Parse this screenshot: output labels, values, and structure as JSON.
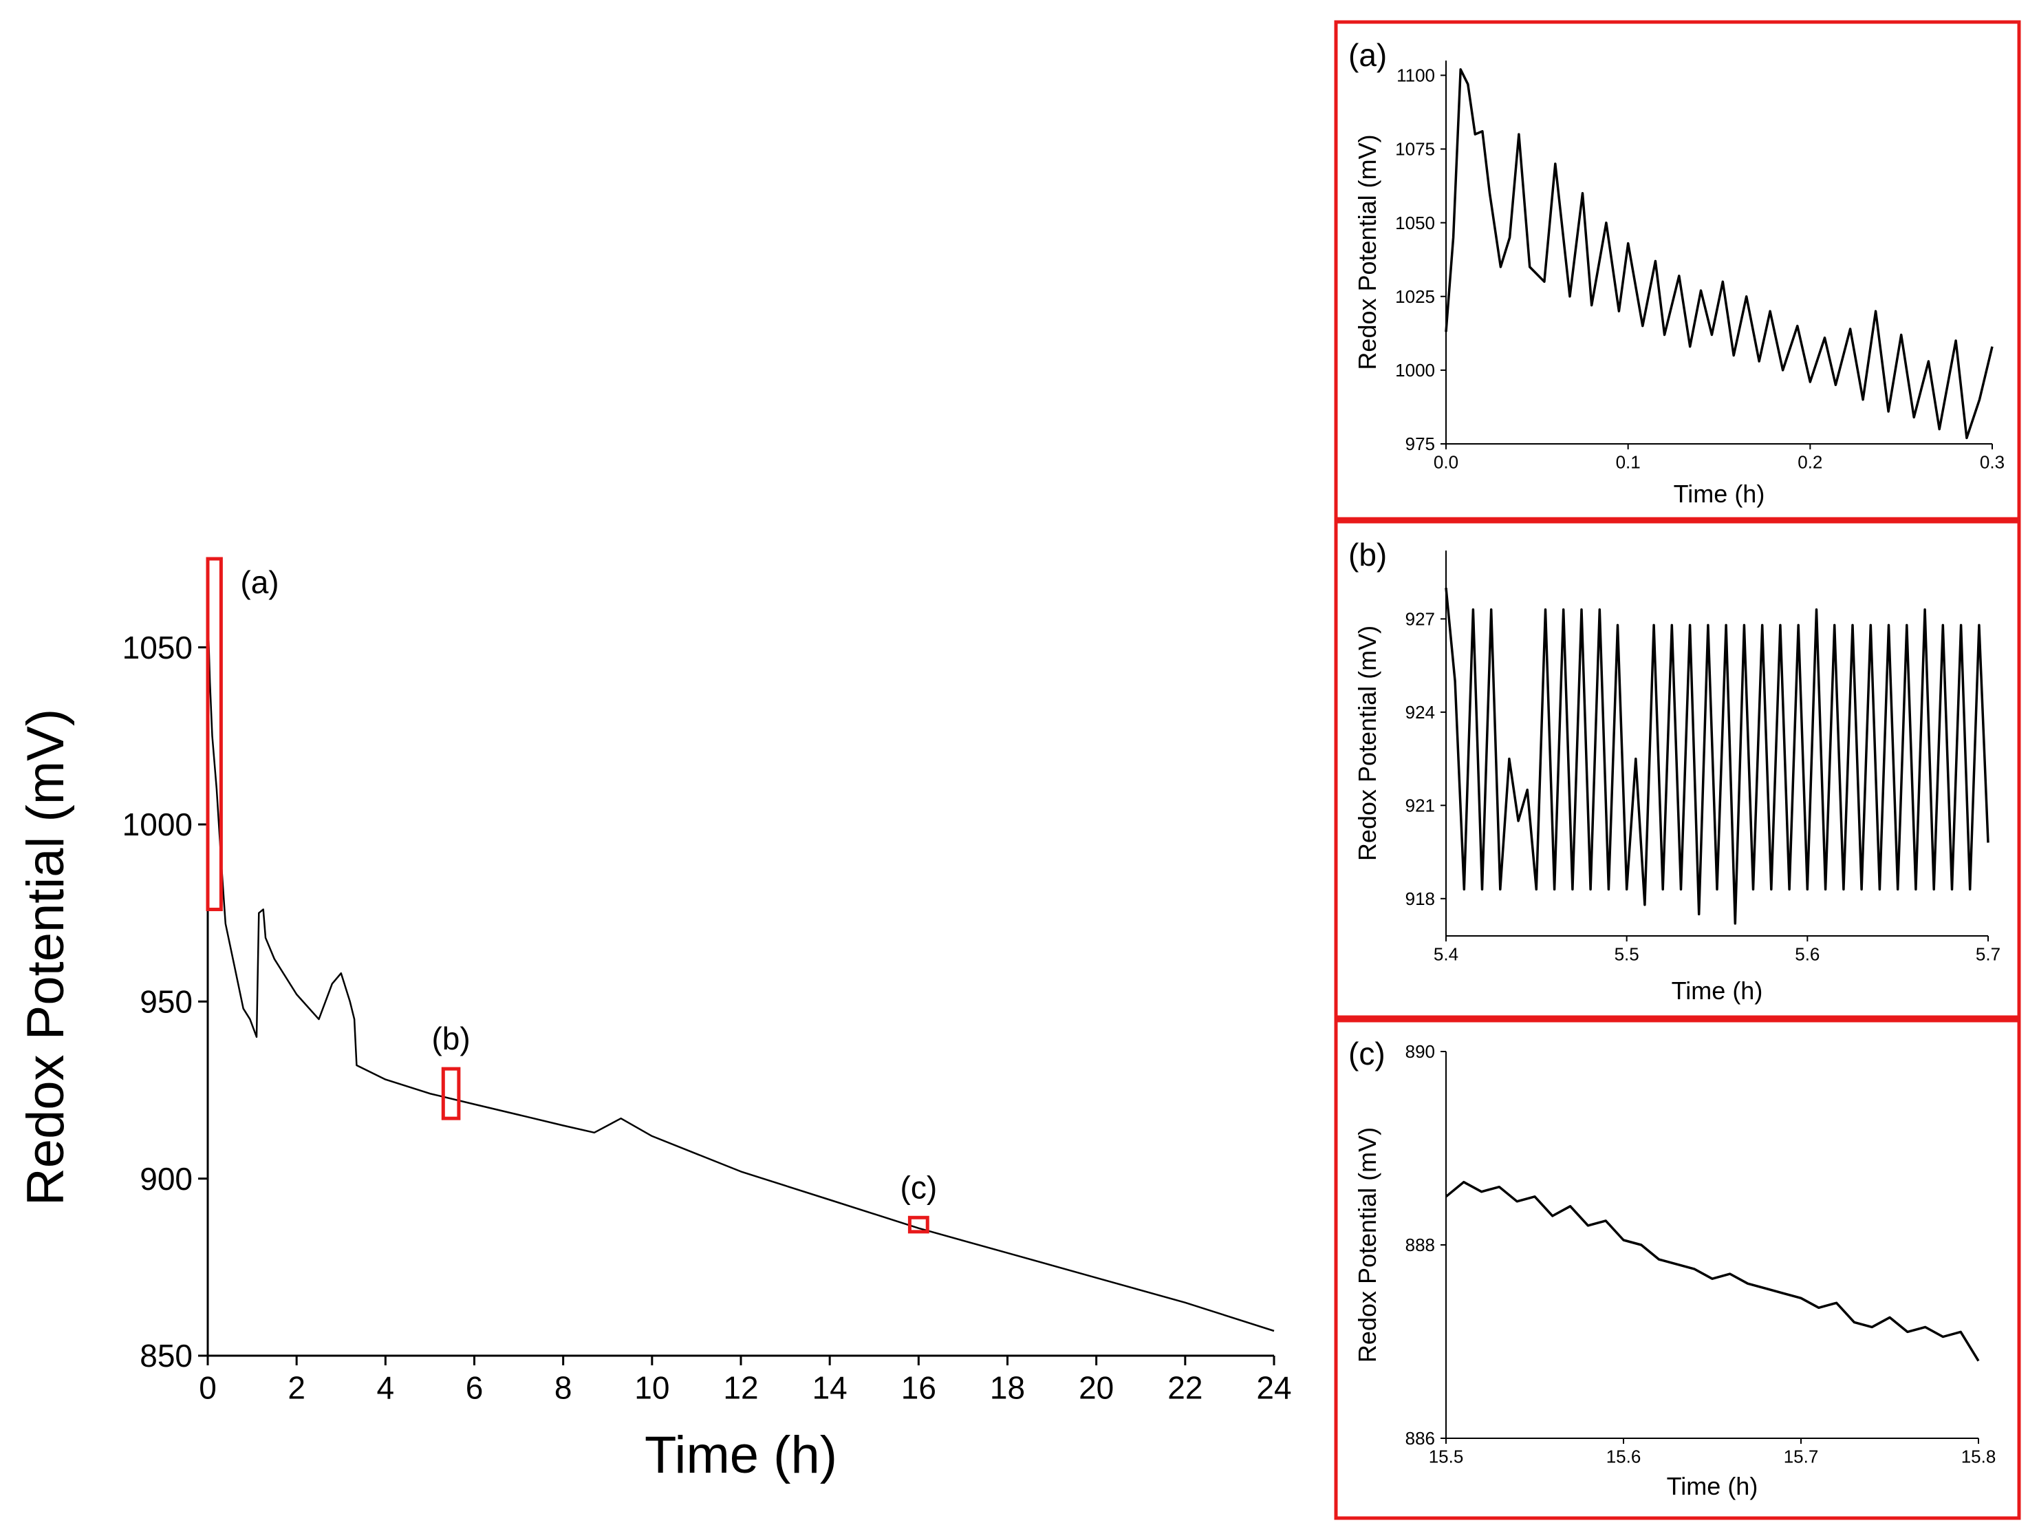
{
  "chart_data": [
    {
      "id": "main",
      "type": "line",
      "title": "",
      "xlabel": "Time (h)",
      "ylabel": "Redox Potential (mV)",
      "xlim": [
        0,
        24
      ],
      "ylim": [
        850,
        1075
      ],
      "xticks": [
        0,
        2,
        4,
        6,
        8,
        10,
        12,
        14,
        16,
        18,
        20,
        22,
        24
      ],
      "yticks": [
        850,
        900,
        950,
        1000,
        1050
      ],
      "series": [
        {
          "name": "Redox potential",
          "x": [
            0,
            0.05,
            0.1,
            0.2,
            0.3,
            0.4,
            0.6,
            0.8,
            0.95,
            1.1,
            1.15,
            1.25,
            1.3,
            1.5,
            2.0,
            2.5,
            2.8,
            3.0,
            3.2,
            3.3,
            3.35,
            4,
            5,
            6,
            7,
            8,
            8.7,
            9.3,
            10,
            12,
            14,
            16,
            18,
            20,
            22,
            24
          ],
          "y": [
            1060,
            1040,
            1025,
            1010,
            990,
            972,
            960,
            948,
            945,
            940,
            975,
            976,
            968,
            962,
            952,
            945,
            955,
            958,
            950,
            945,
            932,
            928,
            924,
            921,
            918,
            915,
            913,
            917,
            912,
            902,
            894,
            886,
            879,
            872,
            865,
            857
          ]
        }
      ],
      "markers": [
        {
          "label": "(a)",
          "x": [
            0,
            0.3
          ],
          "y": [
            976,
            1075
          ]
        },
        {
          "label": "(b)",
          "x": [
            5.3,
            5.65
          ],
          "y": [
            917,
            931
          ]
        },
        {
          "label": "(c)",
          "x": [
            15.8,
            16.2
          ],
          "y": [
            885,
            889
          ]
        }
      ]
    },
    {
      "id": "a",
      "type": "line",
      "panel_label": "(a)",
      "xlabel": "Time (h)",
      "ylabel": "Redox Potential (mV)",
      "xlim": [
        0,
        0.3
      ],
      "ylim": [
        975,
        1105
      ],
      "xticks": [
        0.0,
        0.1,
        0.2,
        0.3
      ],
      "xtick_labels": [
        "0.0",
        "0.1",
        "0.2",
        "0.3"
      ],
      "yticks": [
        975,
        1000,
        1025,
        1050,
        1075,
        1100
      ],
      "series": [
        {
          "name": "(a)",
          "x": [
            0,
            0.004,
            0.008,
            0.012,
            0.016,
            0.02,
            0.024,
            0.03,
            0.035,
            0.04,
            0.046,
            0.054,
            0.06,
            0.068,
            0.075,
            0.08,
            0.088,
            0.095,
            0.1,
            0.108,
            0.115,
            0.12,
            0.128,
            0.134,
            0.14,
            0.146,
            0.152,
            0.158,
            0.165,
            0.172,
            0.178,
            0.185,
            0.193,
            0.2,
            0.208,
            0.214,
            0.222,
            0.229,
            0.236,
            0.243,
            0.25,
            0.257,
            0.265,
            0.271,
            0.28,
            0.286,
            0.293,
            0.3
          ],
          "y": [
            1013,
            1045,
            1102,
            1097,
            1080,
            1081,
            1060,
            1035,
            1045,
            1080,
            1035,
            1030,
            1070,
            1025,
            1060,
            1022,
            1050,
            1020,
            1043,
            1015,
            1037,
            1012,
            1032,
            1008,
            1027,
            1012,
            1030,
            1005,
            1025,
            1003,
            1020,
            1000,
            1015,
            996,
            1011,
            995,
            1014,
            990,
            1020,
            986,
            1012,
            984,
            1003,
            980,
            1010,
            977,
            990,
            1008
          ]
        }
      ]
    },
    {
      "id": "b",
      "type": "line",
      "panel_label": "(b)",
      "xlabel": "Time (h)",
      "ylabel": "Redox Potential (mV)",
      "xlim": [
        5.4,
        5.7
      ],
      "ylim": [
        916.8,
        929.2
      ],
      "xticks": [
        5.4,
        5.5,
        5.6,
        5.7
      ],
      "xtick_labels": [
        "5.4",
        "5.5",
        "5.6",
        "5.7"
      ],
      "yticks": [
        918,
        921,
        924,
        927
      ],
      "series": [
        {
          "name": "(b)",
          "x": [
            5.4,
            5.405,
            5.41,
            5.415,
            5.42,
            5.425,
            5.43,
            5.435,
            5.44,
            5.445,
            5.45,
            5.455,
            5.46,
            5.465,
            5.47,
            5.475,
            5.48,
            5.485,
            5.49,
            5.495,
            5.5,
            5.505,
            5.51,
            5.515,
            5.52,
            5.525,
            5.53,
            5.535,
            5.54,
            5.545,
            5.55,
            5.555,
            5.56,
            5.565,
            5.57,
            5.575,
            5.58,
            5.585,
            5.59,
            5.595,
            5.6,
            5.605,
            5.61,
            5.615,
            5.62,
            5.625,
            5.63,
            5.635,
            5.64,
            5.645,
            5.65,
            5.655,
            5.66,
            5.665,
            5.67,
            5.675,
            5.68,
            5.685,
            5.69,
            5.695,
            5.7
          ],
          "y": [
            928,
            925,
            918.3,
            927.3,
            918.3,
            927.3,
            918.3,
            922.5,
            920.5,
            921.5,
            918.3,
            927.3,
            918.3,
            927.3,
            918.3,
            927.3,
            918.3,
            927.3,
            918.3,
            926.8,
            918.3,
            922.5,
            917.8,
            926.8,
            918.3,
            926.8,
            918.3,
            926.8,
            917.5,
            926.8,
            918.3,
            926.8,
            917.2,
            926.8,
            918.3,
            926.8,
            918.3,
            926.8,
            918.3,
            926.8,
            918.3,
            927.3,
            918.3,
            926.8,
            918.3,
            926.8,
            918.3,
            926.8,
            918.3,
            926.8,
            918.3,
            926.8,
            918.3,
            927.3,
            918.3,
            926.8,
            918.3,
            926.8,
            918.3,
            926.8,
            919.8
          ]
        }
      ]
    },
    {
      "id": "c",
      "type": "line",
      "panel_label": "(c)",
      "xlabel": "Time (h)",
      "ylabel": "Redox Potential (mV)",
      "xlim": [
        15.5,
        15.8
      ],
      "ylim": [
        886,
        890
      ],
      "xticks": [
        15.5,
        15.6,
        15.7,
        15.8
      ],
      "xtick_labels": [
        "15.5",
        "15.6",
        "15.7",
        "15.8"
      ],
      "yticks": [
        886,
        888,
        890
      ],
      "series": [
        {
          "name": "(c)",
          "x": [
            15.5,
            15.51,
            15.52,
            15.53,
            15.54,
            15.55,
            15.56,
            15.57,
            15.58,
            15.59,
            15.6,
            15.61,
            15.62,
            15.63,
            15.64,
            15.65,
            15.66,
            15.67,
            15.68,
            15.69,
            15.7,
            15.71,
            15.72,
            15.73,
            15.74,
            15.75,
            15.76,
            15.77,
            15.78,
            15.79,
            15.8
          ],
          "y": [
            888.5,
            888.65,
            888.55,
            888.6,
            888.45,
            888.5,
            888.3,
            888.4,
            888.2,
            888.25,
            888.05,
            888.0,
            887.85,
            887.8,
            887.75,
            887.65,
            887.7,
            887.6,
            887.55,
            887.5,
            887.45,
            887.35,
            887.4,
            887.2,
            887.15,
            887.25,
            887.1,
            887.15,
            887.05,
            887.1,
            886.8
          ]
        }
      ]
    }
  ]
}
